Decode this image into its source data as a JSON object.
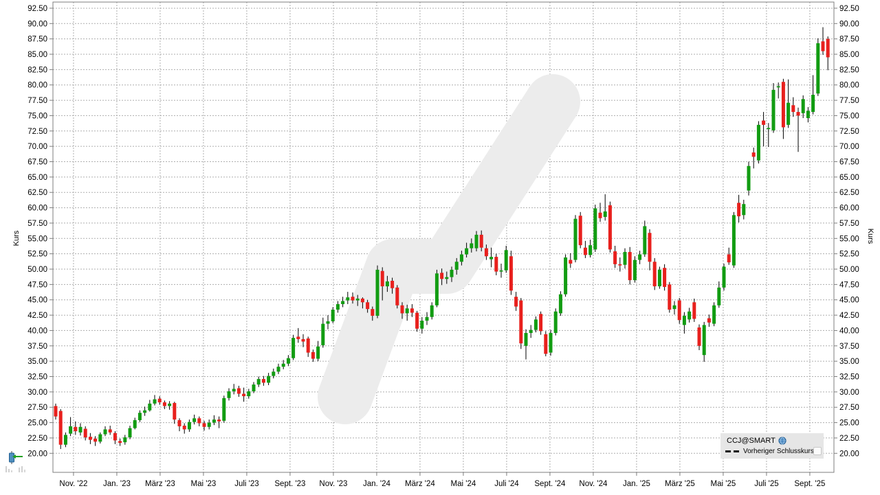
{
  "chart_data": {
    "type": "candlestick",
    "symbol": "CCJ@SMART",
    "ylabel": "Kurs",
    "y_axis": {
      "min": 20,
      "max": 92.5,
      "step": 2.5,
      "decimals": 2,
      "ylim": [
        16.9,
        93.5
      ]
    },
    "x_axis": {
      "labels": [
        "Nov. '22",
        "Jan. '23",
        "März '23",
        "Mai '23",
        "Juli '23",
        "Sept. '23",
        "Nov. '23",
        "Jan. '24",
        "März '24",
        "Mai '24",
        "Juli '24",
        "Sept. '24",
        "Nov. '24",
        "Jan. '25",
        "März '25",
        "Mai '25",
        "Juli '25",
        "Sept. '25"
      ],
      "first_index": 3.6,
      "index_step": 8.75
    },
    "legend": {
      "symbol_label": "CCJ@SMART",
      "prev_close_label": "Vorheriger Schlusskurs"
    },
    "colors": {
      "up": "#129c12",
      "down": "#e8201d",
      "wick": "#000000",
      "grid": "#adadad",
      "border": "#7d7d7d",
      "watermark": "#ececec",
      "legend_bg": "#e6e6e6",
      "text": "#000000",
      "globe_blue": "#3579b8",
      "arrow_green": "#21a121",
      "faint_bars": "#d0d0d0"
    },
    "candles": [
      [
        27.7,
        28.1,
        25.5,
        26.0
      ],
      [
        26.9,
        27.2,
        20.7,
        21.4
      ],
      [
        21.4,
        23.4,
        21.0,
        23.0
      ],
      [
        23.2,
        25.9,
        22.8,
        24.4
      ],
      [
        24.3,
        25.2,
        23.0,
        23.6
      ],
      [
        23.4,
        24.9,
        22.9,
        24.3
      ],
      [
        24.0,
        24.4,
        22.1,
        22.6
      ],
      [
        22.7,
        23.3,
        21.5,
        22.2
      ],
      [
        22.4,
        22.8,
        21.2,
        21.9
      ],
      [
        21.9,
        23.4,
        21.6,
        23.1
      ],
      [
        23.1,
        24.4,
        22.8,
        23.9
      ],
      [
        23.9,
        24.5,
        23.0,
        23.4
      ],
      [
        23.3,
        23.6,
        21.5,
        22.1
      ],
      [
        22.0,
        22.4,
        21.2,
        21.7
      ],
      [
        21.8,
        23.0,
        21.4,
        22.6
      ],
      [
        22.6,
        24.5,
        22.3,
        24.1
      ],
      [
        24.1,
        25.8,
        23.9,
        25.4
      ],
      [
        25.4,
        27.0,
        25.1,
        26.6
      ],
      [
        26.6,
        27.6,
        26.1,
        27.0
      ],
      [
        27.0,
        28.7,
        26.8,
        28.1
      ],
      [
        28.1,
        29.5,
        27.8,
        28.8
      ],
      [
        28.9,
        29.3,
        27.9,
        28.3
      ],
      [
        28.3,
        28.6,
        27.2,
        27.7
      ],
      [
        27.7,
        28.5,
        27.1,
        28.1
      ],
      [
        28.2,
        28.4,
        24.8,
        25.5
      ],
      [
        25.4,
        25.7,
        23.6,
        24.4
      ],
      [
        24.5,
        24.9,
        23.2,
        23.9
      ],
      [
        23.9,
        25.5,
        23.5,
        25.1
      ],
      [
        25.1,
        26.3,
        24.7,
        25.7
      ],
      [
        25.7,
        26.0,
        24.4,
        24.9
      ],
      [
        24.9,
        25.3,
        23.7,
        24.3
      ],
      [
        24.3,
        25.5,
        23.9,
        25.0
      ],
      [
        25.0,
        26.2,
        24.6,
        25.5
      ],
      [
        25.5,
        26.0,
        24.1,
        25.2
      ],
      [
        25.3,
        29.4,
        25.0,
        29.0
      ],
      [
        29.0,
        30.6,
        28.6,
        30.1
      ],
      [
        30.1,
        31.3,
        29.6,
        30.5
      ],
      [
        30.6,
        31.0,
        29.2,
        29.7
      ],
      [
        29.7,
        30.7,
        28.4,
        29.3
      ],
      [
        29.3,
        30.5,
        28.9,
        30.1
      ],
      [
        30.1,
        31.6,
        29.8,
        31.2
      ],
      [
        31.2,
        32.5,
        30.8,
        32.1
      ],
      [
        32.1,
        32.6,
        31.0,
        31.5
      ],
      [
        31.5,
        33.1,
        31.1,
        32.6
      ],
      [
        32.6,
        33.8,
        32.2,
        33.3
      ],
      [
        33.3,
        34.6,
        32.9,
        34.1
      ],
      [
        34.1,
        35.2,
        33.7,
        34.6
      ],
      [
        34.6,
        36.0,
        34.2,
        35.5
      ],
      [
        35.5,
        39.3,
        35.2,
        38.8
      ],
      [
        39.0,
        40.4,
        38.0,
        38.6
      ],
      [
        38.6,
        39.4,
        37.3,
        38.2
      ],
      [
        38.7,
        39.0,
        35.7,
        36.4
      ],
      [
        36.5,
        36.9,
        34.9,
        35.4
      ],
      [
        35.4,
        38.3,
        35.0,
        37.4
      ],
      [
        37.6,
        42.1,
        37.2,
        41.1
      ],
      [
        41.1,
        42.5,
        40.2,
        41.5
      ],
      [
        41.5,
        43.8,
        41.2,
        43.4
      ],
      [
        43.4,
        44.8,
        42.9,
        44.3
      ],
      [
        44.3,
        45.5,
        43.8,
        44.8
      ],
      [
        44.9,
        46.3,
        44.3,
        45.4
      ],
      [
        45.5,
        46.2,
        44.4,
        44.9
      ],
      [
        44.9,
        45.8,
        44.0,
        45.2
      ],
      [
        45.2,
        45.4,
        43.6,
        44.6
      ],
      [
        44.6,
        45.0,
        42.9,
        43.5
      ],
      [
        43.5,
        43.9,
        41.6,
        42.4
      ],
      [
        42.4,
        50.6,
        42.0,
        49.9
      ],
      [
        49.7,
        50.3,
        44.9,
        47.2
      ],
      [
        47.2,
        48.9,
        46.3,
        48.0
      ],
      [
        48.1,
        48.6,
        46.0,
        46.9
      ],
      [
        47.0,
        47.4,
        43.6,
        44.1
      ],
      [
        44.1,
        44.6,
        41.9,
        42.8
      ],
      [
        42.8,
        44.2,
        41.6,
        43.6
      ],
      [
        43.6,
        44.3,
        42.2,
        42.9
      ],
      [
        42.9,
        43.2,
        39.8,
        40.3
      ],
      [
        40.3,
        42.2,
        39.5,
        41.6
      ],
      [
        41.6,
        43.0,
        40.9,
        42.2
      ],
      [
        42.2,
        44.6,
        41.8,
        44.1
      ],
      [
        44.1,
        49.9,
        43.8,
        49.3
      ],
      [
        49.4,
        50.1,
        47.4,
        48.4
      ],
      [
        48.4,
        49.6,
        47.6,
        48.7
      ],
      [
        48.7,
        50.4,
        47.9,
        49.9
      ],
      [
        49.9,
        51.8,
        49.1,
        51.2
      ],
      [
        51.2,
        53.0,
        50.6,
        52.4
      ],
      [
        52.4,
        54.3,
        51.9,
        53.4
      ],
      [
        53.4,
        55.0,
        52.7,
        54.2
      ],
      [
        53.4,
        56.2,
        52.9,
        55.6
      ],
      [
        55.6,
        56.3,
        52.9,
        53.5
      ],
      [
        53.4,
        54.0,
        51.5,
        52.1
      ],
      [
        51.6,
        53.5,
        50.3,
        52.0
      ],
      [
        52.0,
        52.5,
        49.0,
        49.6
      ],
      [
        49.6,
        50.9,
        48.6,
        49.8
      ],
      [
        49.8,
        53.8,
        49.4,
        53.1
      ],
      [
        52.1,
        53.0,
        45.8,
        46.5
      ],
      [
        45.5,
        46.3,
        43.2,
        43.9
      ],
      [
        44.9,
        45.3,
        37.0,
        37.9
      ],
      [
        37.5,
        40.2,
        35.3,
        39.6
      ],
      [
        39.6,
        40.9,
        38.8,
        40.1
      ],
      [
        40.1,
        42.3,
        39.7,
        41.8
      ],
      [
        42.7,
        43.1,
        39.3,
        39.9
      ],
      [
        39.4,
        39.9,
        35.8,
        36.2
      ],
      [
        36.4,
        40.1,
        35.9,
        39.6
      ],
      [
        39.6,
        43.6,
        39.2,
        43.1
      ],
      [
        42.8,
        46.4,
        42.4,
        45.9
      ],
      [
        45.9,
        52.4,
        45.5,
        51.9
      ],
      [
        51.5,
        52.6,
        50.2,
        50.9
      ],
      [
        51.5,
        58.8,
        51.1,
        58.2
      ],
      [
        58.7,
        59.3,
        53.4,
        53.9
      ],
      [
        53.5,
        54.6,
        51.8,
        52.3
      ],
      [
        52.3,
        54.8,
        51.9,
        53.9
      ],
      [
        53.2,
        60.5,
        52.8,
        59.9
      ],
      [
        59.2,
        60.8,
        57.7,
        58.3
      ],
      [
        58.5,
        62.2,
        57.9,
        59.4
      ],
      [
        60.4,
        61.0,
        52.7,
        53.2
      ],
      [
        52.9,
        53.8,
        50.2,
        50.8
      ],
      [
        50.8,
        51.9,
        49.6,
        50.6
      ],
      [
        50.7,
        53.4,
        50.1,
        52.8
      ],
      [
        52.8,
        53.6,
        47.5,
        48.2
      ],
      [
        48.2,
        52.1,
        47.8,
        51.5
      ],
      [
        51.5,
        53.0,
        50.8,
        52.4
      ],
      [
        52.4,
        57.9,
        52.0,
        57.0
      ],
      [
        55.9,
        56.5,
        49.8,
        51.2
      ],
      [
        51.2,
        51.8,
        46.6,
        47.2
      ],
      [
        47.2,
        50.4,
        46.8,
        49.9
      ],
      [
        50.2,
        50.8,
        46.5,
        47.1
      ],
      [
        47.5,
        47.9,
        42.9,
        43.4
      ],
      [
        43.5,
        44.8,
        42.6,
        44.1
      ],
      [
        44.9,
        45.3,
        41.1,
        41.7
      ],
      [
        40.9,
        43.0,
        39.5,
        42.4
      ],
      [
        41.8,
        43.7,
        41.3,
        43.1
      ],
      [
        44.6,
        45.2,
        41.4,
        41.9
      ],
      [
        40.5,
        41.0,
        36.8,
        37.5
      ],
      [
        36.0,
        41.4,
        34.9,
        40.9
      ],
      [
        42.0,
        42.6,
        40.6,
        41.3
      ],
      [
        41.1,
        44.6,
        40.7,
        44.1
      ],
      [
        44.1,
        48.0,
        43.7,
        47.0
      ],
      [
        47.0,
        50.9,
        46.5,
        50.4
      ],
      [
        52.4,
        53.5,
        50.7,
        51.1
      ],
      [
        50.6,
        59.3,
        50.2,
        58.8
      ],
      [
        60.8,
        62.1,
        57.6,
        58.6
      ],
      [
        58.8,
        61.3,
        58.1,
        60.6
      ],
      [
        62.8,
        67.5,
        62.0,
        66.8
      ],
      [
        69.0,
        69.8,
        66.4,
        68.3
      ],
      [
        67.7,
        74.1,
        67.2,
        73.5
      ],
      [
        74.2,
        75.6,
        70.0,
        73.5
      ],
      [
        72.8,
        73.8,
        69.9,
        73.0
      ],
      [
        72.6,
        80.3,
        72.2,
        79.2
      ],
      [
        79.6,
        80.4,
        77.8,
        79.8
      ],
      [
        80.5,
        81.0,
        71.2,
        73.1
      ],
      [
        73.5,
        80.9,
        73.0,
        77.1
      ],
      [
        76.7,
        78.0,
        74.8,
        75.6
      ],
      [
        75.6,
        76.3,
        69.1,
        75.0
      ],
      [
        75.4,
        78.3,
        74.6,
        77.7
      ],
      [
        74.6,
        76.4,
        73.9,
        75.8
      ],
      [
        75.6,
        81.6,
        75.2,
        78.4
      ],
      [
        78.6,
        87.6,
        78.2,
        86.8
      ],
      [
        87.1,
        89.4,
        84.9,
        85.5
      ],
      [
        87.5,
        87.9,
        82.4,
        84.5
      ]
    ]
  },
  "icons": {
    "globe": "globe-icon",
    "legend_dash": "dashed-line-swatch",
    "tool_candle": "candlestick-arrow-icon",
    "tool_bars": "mini-bars-icon"
  }
}
